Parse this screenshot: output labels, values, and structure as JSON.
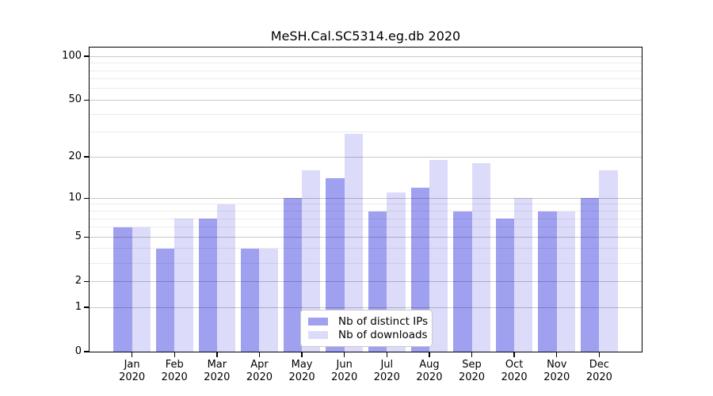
{
  "chart_data": {
    "type": "bar",
    "title": "MeSH.Cal.SC5314.eg.db 2020",
    "categories": [
      "Jan",
      "Feb",
      "Mar",
      "Apr",
      "May",
      "Jun",
      "Jul",
      "Aug",
      "Sep",
      "Oct",
      "Nov",
      "Dec"
    ],
    "category_year": "2020",
    "series": [
      {
        "name": "Nb of distinct IPs",
        "color": "#a0a0f0",
        "values": [
          6,
          4,
          7,
          4,
          10,
          14,
          8,
          12,
          8,
          7,
          8,
          10
        ]
      },
      {
        "name": "Nb of downloads",
        "color": "#dcdcfa",
        "values": [
          6,
          7,
          9,
          4,
          16,
          29,
          11,
          19,
          18,
          10,
          8,
          16
        ]
      }
    ],
    "xlabel": "",
    "ylabel": "",
    "y_axis": {
      "scale": "log1p",
      "major_ticks": [
        0,
        1,
        2,
        5,
        10,
        20,
        50,
        100
      ],
      "minor_ticks": [
        3,
        4,
        6,
        7,
        8,
        9,
        30,
        40,
        60,
        70,
        80,
        90
      ],
      "ylim": [
        0,
        115
      ]
    },
    "grid": "horizontal-over-bars",
    "legend_position": "lower center",
    "colors": {
      "major_grid": "#c8c8c8",
      "minor_grid": "#ececec",
      "spine": "#000000",
      "background": "#ffffff",
      "text": "#000000"
    }
  }
}
